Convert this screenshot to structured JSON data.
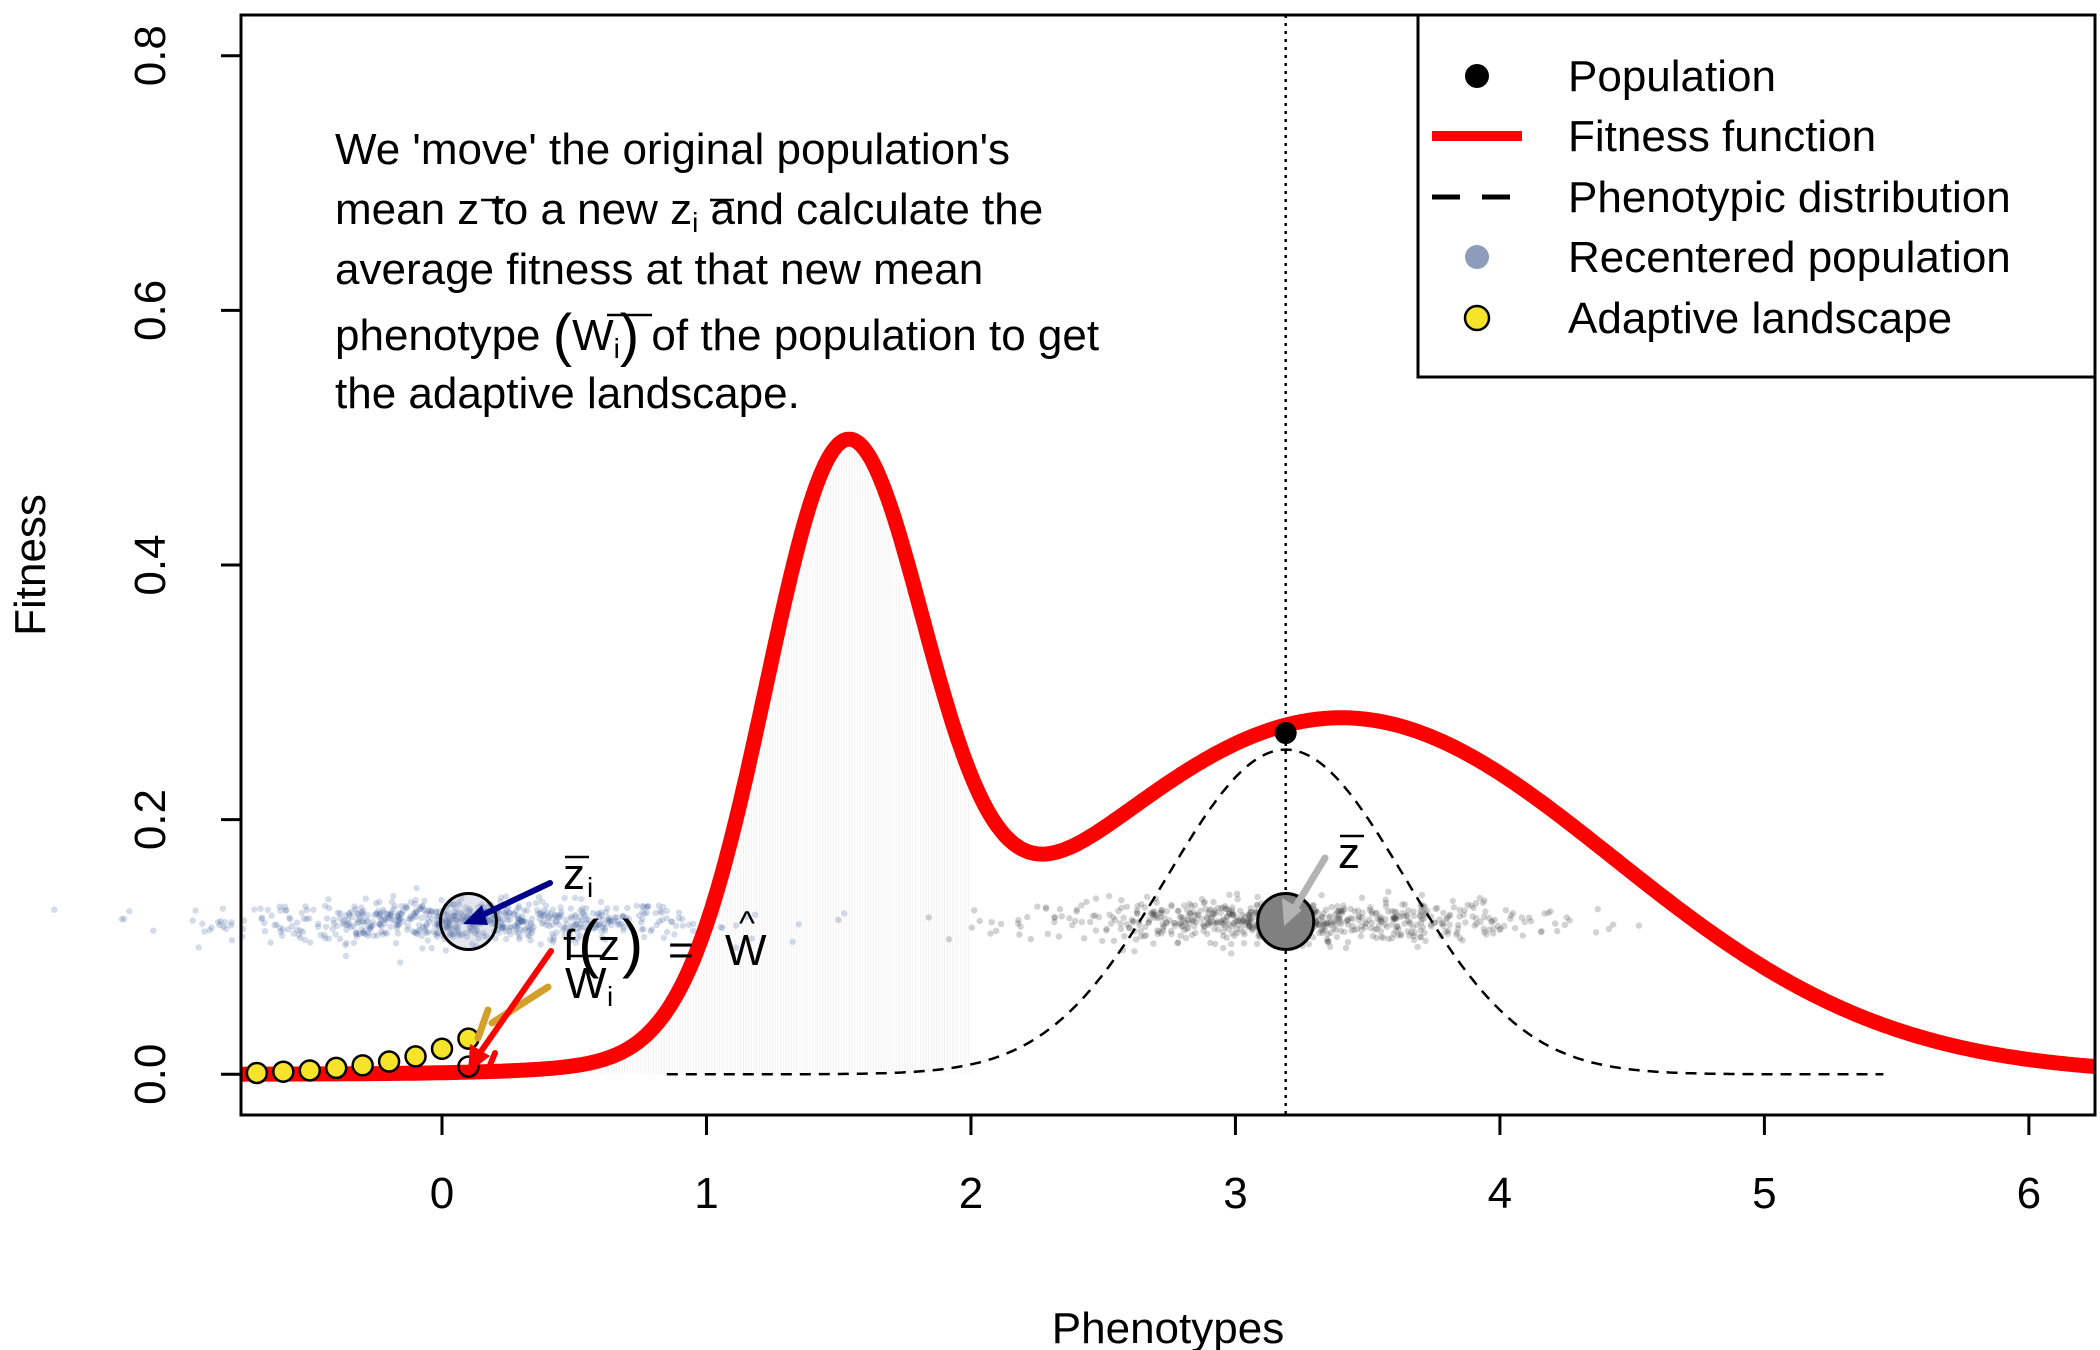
{
  "chart_data": {
    "type": "line",
    "title": "",
    "xlabel": "Phenotypes",
    "ylabel": "Fitness",
    "xlim": [
      -0.76,
      6.25
    ],
    "ylim": [
      -0.032,
      0.832
    ],
    "x_ticks": [
      "0",
      "1",
      "2",
      "3",
      "4",
      "5",
      "6"
    ],
    "y_ticks": [
      "0.0",
      "0.2",
      "0.4",
      "0.6",
      "0.8"
    ],
    "grid": false,
    "legend_position": "top-right",
    "legend": [
      {
        "label": "Population",
        "symbol": "point",
        "color": "#000000"
      },
      {
        "label": "Fitness function",
        "symbol": "line",
        "color": "#ff0000"
      },
      {
        "label": "Phenotypic distribution",
        "symbol": "dashed-line",
        "color": "#000000"
      },
      {
        "label": "Recentered population",
        "symbol": "point",
        "color": "#8f9bbb"
      },
      {
        "label": "Adaptive landscape",
        "symbol": "point",
        "color": "#f5e42a"
      }
    ],
    "annotation": {
      "line1": "We 'move' the original population's",
      "line2_a": "mean ",
      "line2_b": " to a new ",
      "line2_c": " and calculate the",
      "line3": "average fitness at that new mean",
      "line4_a": "phenotype ",
      "line4_b": " of the population to get",
      "line5": "the adaptive landscape.",
      "z": "z",
      "i": "i",
      "W": "W",
      "open_paren": "(",
      "close_paren": ")"
    },
    "labels": {
      "zbar": "z",
      "zbar_i": "z",
      "sub_i": "i",
      "W_i": "W",
      "f_of_z": "f(z) = Ŵ",
      "f": "f",
      "z": "z",
      "paren_open": "(",
      "paren_close": ")",
      "equals": "=",
      "W_hat": "W",
      "hat": "^"
    },
    "fitness_function": {
      "name": "Fitness function",
      "color": "#ff0000",
      "components": [
        {
          "weight": 0.445,
          "mean": 1.52,
          "sd": 0.3
        },
        {
          "weight": 0.28,
          "mean": 3.4,
          "sd": 1.03
        }
      ]
    },
    "phenotypic_distribution": {
      "name": "Phenotypic distribution",
      "mean": 3.19,
      "sd": 0.45,
      "peak": 0.255,
      "x_range": [
        0.85,
        5.45
      ]
    },
    "population": {
      "x": 3.19,
      "y": 0.268
    },
    "population_mean_marker": {
      "x": 3.19,
      "y": 0.12
    },
    "recentered_mean_marker": {
      "x": 0.1,
      "y": 0.12
    },
    "population_cloud_center_x": 3.19,
    "recentered_cloud_center_x": 0.1,
    "cloud_y": 0.12,
    "adaptive_landscape": {
      "name": "Adaptive landscape",
      "x": [
        -0.7,
        -0.6,
        -0.5,
        -0.4,
        -0.3,
        -0.2,
        -0.1,
        0.0,
        0.1
      ],
      "y": [
        0.001,
        0.002,
        0.003,
        0.005,
        0.007,
        0.01,
        0.014,
        0.02,
        0.028
      ]
    },
    "current_point": {
      "x": 0.1,
      "y": 0.006
    },
    "vline_x": 3.19
  }
}
